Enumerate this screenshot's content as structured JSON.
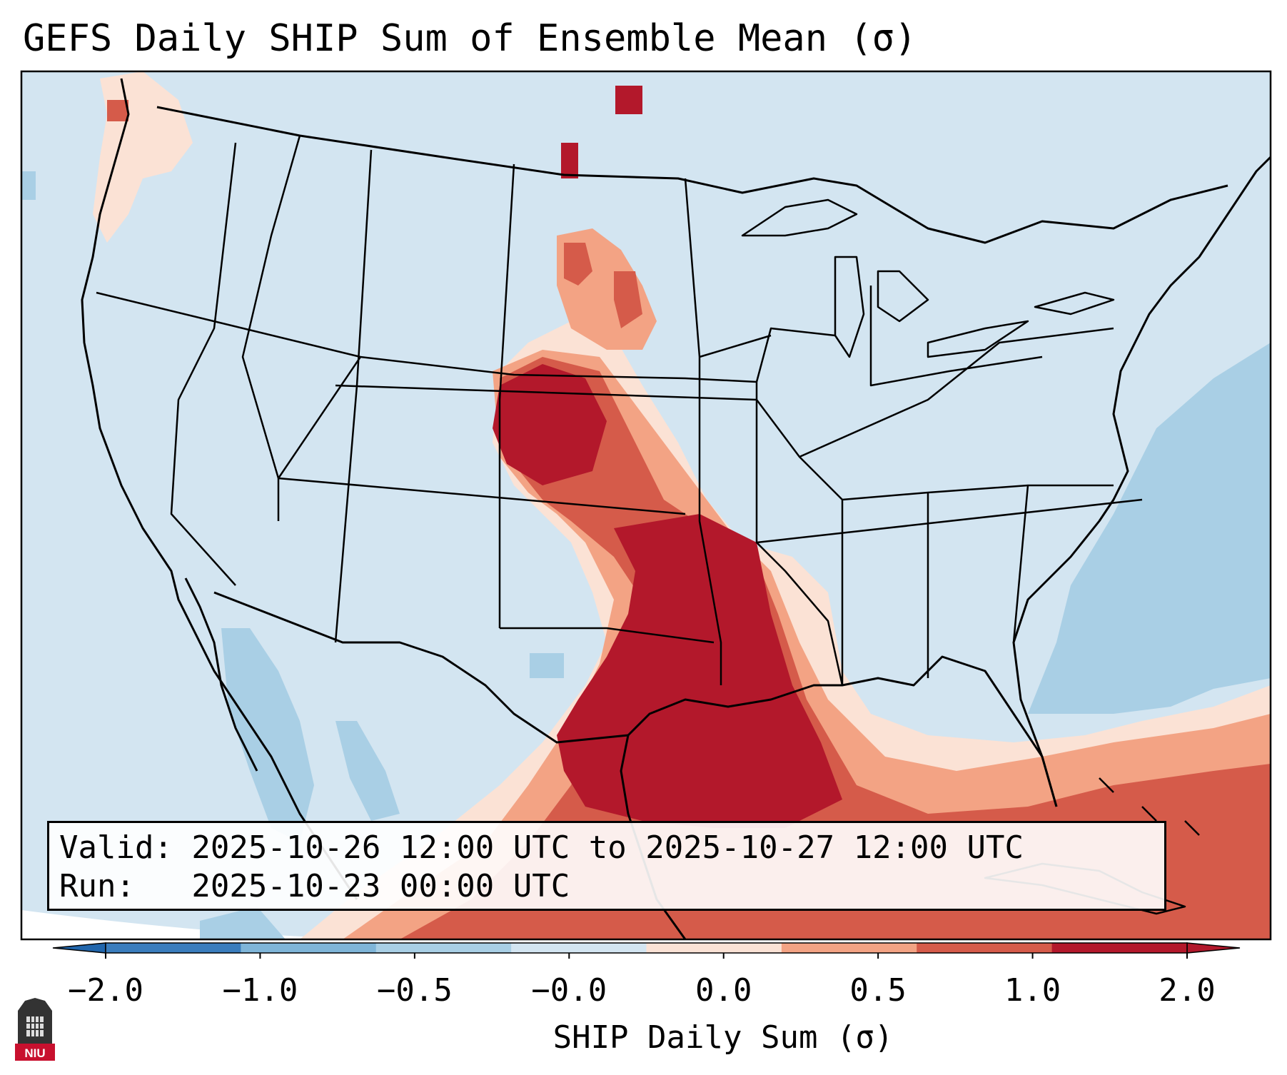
{
  "title": "GEFS Daily SHIP Sum of Ensemble Mean (σ)",
  "info": {
    "valid_line": "Valid: 2025-10-26 12:00 UTC to 2025-10-27 12:00 UTC",
    "run_line": "Run:   2025-10-23 00:00 UTC"
  },
  "colorbar": {
    "label": "SHIP Daily Sum (σ)",
    "ticks": [
      "−2.0",
      "−1.0",
      "−0.5",
      "−0.0",
      "0.0",
      "0.5",
      "1.0",
      "2.0"
    ],
    "colors": [
      "#3a7dbd",
      "#7fb5d8",
      "#a9cfe5",
      "#d3e5f1",
      "#fbe2d5",
      "#f3a384",
      "#d55b4a",
      "#b3182b"
    ],
    "under_color": "#2166ac",
    "over_color": "#b2182b"
  },
  "map": {
    "land_color": "#d3e5f1",
    "outline_color": "#000000",
    "region": "Contiguous United States"
  },
  "logo": {
    "text": "NIU",
    "color": "#c8102e"
  }
}
